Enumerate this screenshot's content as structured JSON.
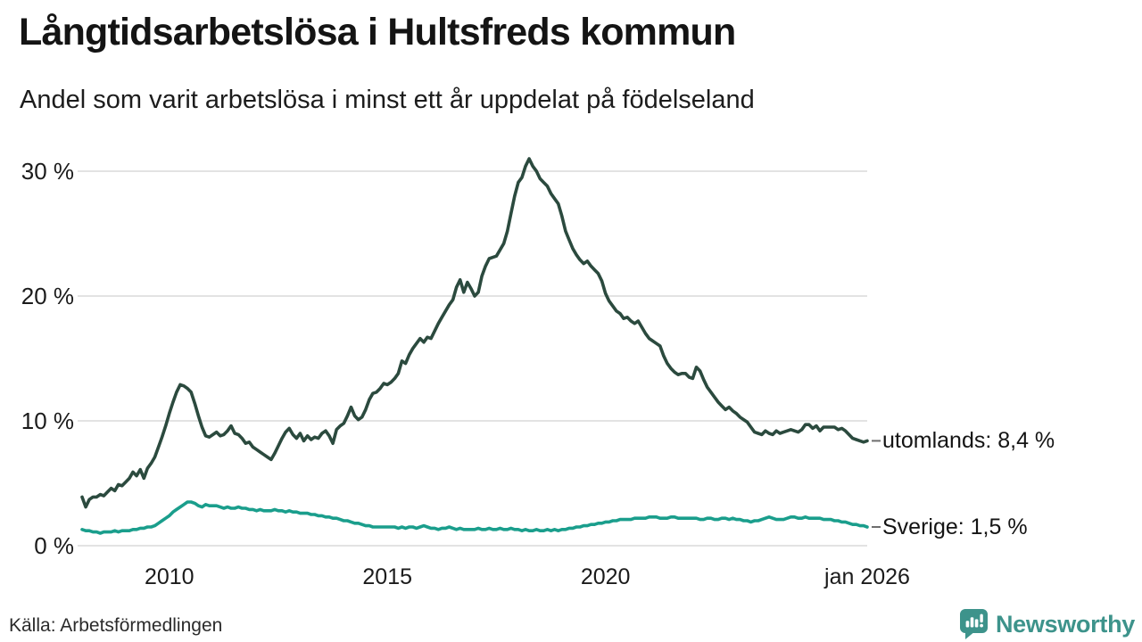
{
  "header": {
    "title": "Långtidsarbetslösa i Hultsfreds kommun",
    "subtitle": "Andel som varit arbetslösa i minst ett år uppdelat på födelseland"
  },
  "footer": {
    "source": "Källa: Arbetsförmedlingen",
    "brand": {
      "name": "Newsworthy",
      "icon": "newsworthy-speech-bubble-chart-icon",
      "color": "#3d938b"
    }
  },
  "chart_data": {
    "type": "line",
    "title": "Långtidsarbetslösa i Hultsfreds kommun",
    "subtitle": "Andel som varit arbetslösa i minst ett år uppdelat på födelseland",
    "unit": "percent",
    "x_interval": "monthly",
    "x_start": "2008-01",
    "x_end": "2026-01",
    "xlim_years": [
      2008,
      2026
    ],
    "ylim": [
      0,
      32
    ],
    "grid": "horizontal",
    "gridline_color": "#e3e3e3",
    "x_ticks": [
      {
        "label": "2010",
        "year": 2010
      },
      {
        "label": "2015",
        "year": 2015
      },
      {
        "label": "2020",
        "year": 2020
      },
      {
        "label": "jan 2026",
        "year": 2026
      }
    ],
    "y_ticks": [
      {
        "label": "0 %",
        "value": 0
      },
      {
        "label": "10 %",
        "value": 10
      },
      {
        "label": "20 %",
        "value": 20
      },
      {
        "label": "30 %",
        "value": 30
      }
    ],
    "legend_position": "right-end-labels",
    "series": [
      {
        "name": "utomlands",
        "end_label": "utomlands: 8,4 %",
        "last_value": 8.4,
        "color": "#2b4a3e",
        "values": [
          3.9,
          3.1,
          3.7,
          3.9,
          3.9,
          4.1,
          4.0,
          4.3,
          4.6,
          4.4,
          4.9,
          4.8,
          5.1,
          5.4,
          5.9,
          5.6,
          6.1,
          5.4,
          6.2,
          6.6,
          7.1,
          7.9,
          8.7,
          9.6,
          10.6,
          11.5,
          12.3,
          12.9,
          12.8,
          12.6,
          12.3,
          11.4,
          10.4,
          9.5,
          8.8,
          8.7,
          8.9,
          9.1,
          8.8,
          8.9,
          9.2,
          9.6,
          9.0,
          8.9,
          8.6,
          8.2,
          8.3,
          7.9,
          7.7,
          7.5,
          7.3,
          7.1,
          6.9,
          7.4,
          8.0,
          8.6,
          9.1,
          9.4,
          8.9,
          8.6,
          9.0,
          8.4,
          8.8,
          8.5,
          8.7,
          8.6,
          9.0,
          9.2,
          8.8,
          8.2,
          9.3,
          9.6,
          9.8,
          10.4,
          11.1,
          10.4,
          10.1,
          10.3,
          10.9,
          11.7,
          12.2,
          12.3,
          12.6,
          13.0,
          12.9,
          13.1,
          13.4,
          13.8,
          14.8,
          14.6,
          15.3,
          15.8,
          16.2,
          16.6,
          16.3,
          16.7,
          16.6,
          17.2,
          17.8,
          18.3,
          18.8,
          19.3,
          19.7,
          20.7,
          21.3,
          20.3,
          21.1,
          20.6,
          20.0,
          20.3,
          21.6,
          22.4,
          23.0,
          23.1,
          23.2,
          23.7,
          24.2,
          25.2,
          26.6,
          28.0,
          29.1,
          29.5,
          30.4,
          31.0,
          30.4,
          30.0,
          29.4,
          29.1,
          28.8,
          28.2,
          27.8,
          27.4,
          26.4,
          25.2,
          24.5,
          23.8,
          23.3,
          22.9,
          22.6,
          22.8,
          22.4,
          22.1,
          21.8,
          21.2,
          20.2,
          19.6,
          19.2,
          18.8,
          18.6,
          18.2,
          18.3,
          18.0,
          17.8,
          18.0,
          17.5,
          17.0,
          16.6,
          16.4,
          16.2,
          16.0,
          15.2,
          14.6,
          14.2,
          13.9,
          13.7,
          13.8,
          13.8,
          13.5,
          13.4,
          14.3,
          14.0,
          13.3,
          12.7,
          12.3,
          11.9,
          11.5,
          11.2,
          10.9,
          11.1,
          10.8,
          10.6,
          10.3,
          10.1,
          9.9,
          9.5,
          9.1,
          9.0,
          8.9,
          9.2,
          9.0,
          8.9,
          9.2,
          9.0,
          9.1,
          9.2,
          9.3,
          9.2,
          9.1,
          9.3,
          9.7,
          9.7,
          9.4,
          9.6,
          9.2,
          9.5,
          9.5,
          9.5,
          9.5,
          9.3,
          9.4,
          9.2,
          8.9,
          8.6,
          8.5,
          8.4,
          8.3,
          8.4
        ]
      },
      {
        "name": "Sverige",
        "end_label": "Sverige: 1,5 %",
        "last_value": 1.5,
        "color": "#1a9e8c",
        "values": [
          1.3,
          1.2,
          1.2,
          1.1,
          1.1,
          1.0,
          1.1,
          1.1,
          1.1,
          1.2,
          1.1,
          1.2,
          1.2,
          1.2,
          1.3,
          1.3,
          1.4,
          1.4,
          1.5,
          1.5,
          1.6,
          1.8,
          2.0,
          2.2,
          2.4,
          2.7,
          2.9,
          3.1,
          3.3,
          3.5,
          3.5,
          3.4,
          3.2,
          3.1,
          3.3,
          3.2,
          3.2,
          3.2,
          3.1,
          3.0,
          3.1,
          3.0,
          3.0,
          3.1,
          3.0,
          3.0,
          2.9,
          2.9,
          2.8,
          2.9,
          2.8,
          2.8,
          2.8,
          2.9,
          2.8,
          2.8,
          2.7,
          2.8,
          2.7,
          2.7,
          2.6,
          2.6,
          2.6,
          2.5,
          2.5,
          2.4,
          2.4,
          2.3,
          2.3,
          2.2,
          2.2,
          2.1,
          2.0,
          2.0,
          1.9,
          1.8,
          1.8,
          1.7,
          1.6,
          1.6,
          1.5,
          1.5,
          1.5,
          1.5,
          1.5,
          1.5,
          1.5,
          1.4,
          1.5,
          1.4,
          1.5,
          1.5,
          1.4,
          1.5,
          1.6,
          1.5,
          1.4,
          1.4,
          1.3,
          1.4,
          1.4,
          1.5,
          1.4,
          1.3,
          1.4,
          1.3,
          1.3,
          1.3,
          1.3,
          1.4,
          1.3,
          1.3,
          1.4,
          1.3,
          1.3,
          1.4,
          1.3,
          1.3,
          1.4,
          1.3,
          1.3,
          1.2,
          1.3,
          1.2,
          1.2,
          1.3,
          1.2,
          1.2,
          1.3,
          1.2,
          1.3,
          1.2,
          1.3,
          1.3,
          1.4,
          1.4,
          1.5,
          1.5,
          1.6,
          1.6,
          1.7,
          1.7,
          1.8,
          1.8,
          1.9,
          1.9,
          2.0,
          2.0,
          2.1,
          2.1,
          2.1,
          2.1,
          2.2,
          2.2,
          2.2,
          2.2,
          2.3,
          2.3,
          2.3,
          2.2,
          2.2,
          2.2,
          2.3,
          2.3,
          2.2,
          2.2,
          2.2,
          2.2,
          2.2,
          2.2,
          2.1,
          2.1,
          2.2,
          2.2,
          2.1,
          2.1,
          2.2,
          2.2,
          2.1,
          2.2,
          2.1,
          2.1,
          2.0,
          2.0,
          1.9,
          2.0,
          2.0,
          2.1,
          2.2,
          2.3,
          2.2,
          2.1,
          2.1,
          2.1,
          2.2,
          2.3,
          2.3,
          2.2,
          2.2,
          2.3,
          2.2,
          2.2,
          2.2,
          2.2,
          2.1,
          2.1,
          2.1,
          2.0,
          2.0,
          1.9,
          1.9,
          1.8,
          1.7,
          1.7,
          1.6,
          1.6,
          1.5
        ]
      }
    ]
  }
}
